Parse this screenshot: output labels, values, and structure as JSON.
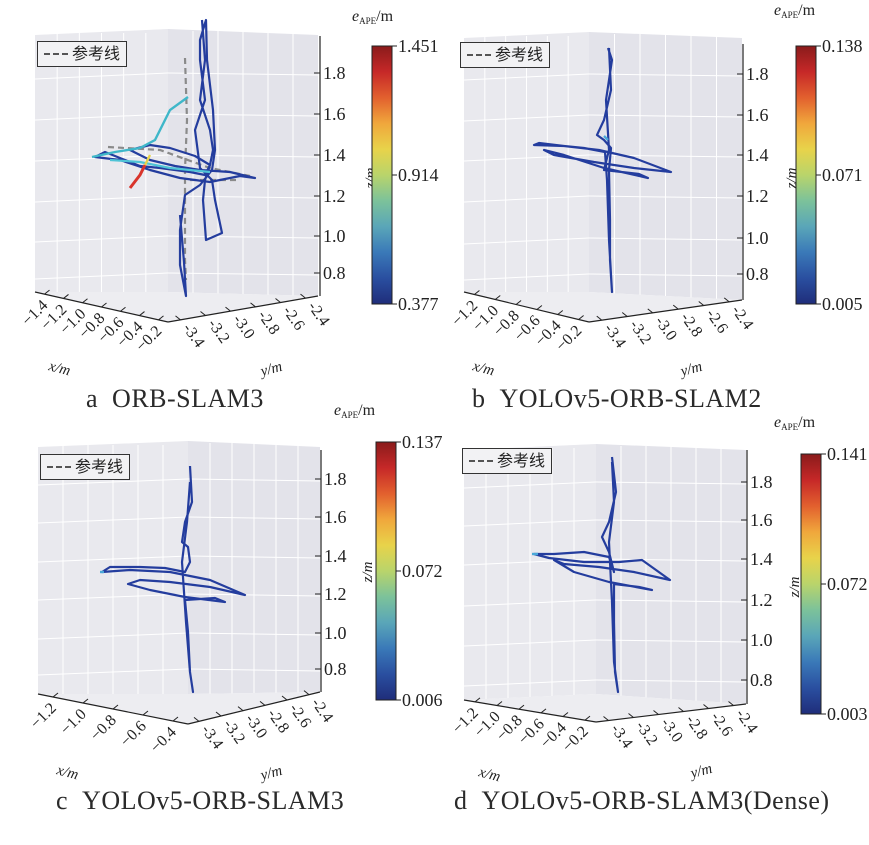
{
  "figure": {
    "legend_label": "参考线",
    "colorbar_title_var": "e",
    "colorbar_title_sub": "APE",
    "colorbar_title_unit": "/m",
    "axis_labels": {
      "x": "x/m",
      "y": "y/m",
      "z": "z/m"
    }
  },
  "chart_data": [
    {
      "type": "scatter",
      "subtype": "3d-trajectory",
      "panel_letter": "a",
      "title": "ORB-SLAM3",
      "xlabel": "x/m",
      "ylabel": "y/m",
      "zlabel": "z/m",
      "x_ticks": [
        "−1.4",
        "−1.2",
        "−1.0",
        "−0.8",
        "−0.6",
        "−0.4",
        "−0.2"
      ],
      "y_ticks": [
        "-3.4",
        "-3.2",
        "-3.0",
        "-2.8",
        "-2.6",
        "-2.4"
      ],
      "z_ticks": [
        "0.8",
        "1.0",
        "1.2",
        "1.4",
        "1.6",
        "1.8"
      ],
      "xlim": [
        -1.5,
        -0.1
      ],
      "ylim": [
        -3.5,
        -2.3
      ],
      "zlim": [
        0.7,
        1.95
      ],
      "colorbar": {
        "min": "0.377",
        "mid": "0.914",
        "max": "1.451",
        "label": "e_APE/m"
      },
      "reference_shown": true,
      "legend": [
        "参考线"
      ]
    },
    {
      "type": "scatter",
      "subtype": "3d-trajectory",
      "panel_letter": "b",
      "title": "YOLOv5-ORB-SLAM2",
      "xlabel": "x/m",
      "ylabel": "y/m",
      "zlabel": "z/m",
      "x_ticks": [
        "−1.2",
        "−1.0",
        "−0.8",
        "−0.6",
        "−0.4",
        "−0.2"
      ],
      "y_ticks": [
        "-3.4",
        "-3.2",
        "-3.0",
        "-2.8",
        "-2.6",
        "-2.4"
      ],
      "z_ticks": [
        "0.8",
        "1.0",
        "1.2",
        "1.4",
        "1.6",
        "1.8"
      ],
      "xlim": [
        -1.3,
        -0.1
      ],
      "ylim": [
        -3.5,
        -2.3
      ],
      "zlim": [
        0.7,
        1.95
      ],
      "colorbar": {
        "min": "0.005",
        "mid": "0.071",
        "max": "0.138",
        "label": "e_APE/m"
      },
      "reference_shown": false,
      "legend": [
        "参考线"
      ]
    },
    {
      "type": "scatter",
      "subtype": "3d-trajectory",
      "panel_letter": "c",
      "title": "YOLOv5-ORB-SLAM3",
      "xlabel": "x/m",
      "ylabel": "y/m",
      "zlabel": "z/m",
      "x_ticks": [
        "−1.2",
        "−1.0",
        "−0.8",
        "−0.6",
        "−0.4"
      ],
      "y_ticks": [
        "-3.4",
        "-3.2",
        "-3.0",
        "-2.8",
        "-2.6",
        "-2.4"
      ],
      "z_ticks": [
        "0.8",
        "1.0",
        "1.2",
        "1.4",
        "1.6",
        "1.8"
      ],
      "xlim": [
        -1.3,
        -0.3
      ],
      "ylim": [
        -3.5,
        -2.3
      ],
      "zlim": [
        0.7,
        1.9
      ],
      "colorbar": {
        "min": "0.006",
        "mid": "0.072",
        "max": "0.137",
        "label": "e_APE/m"
      },
      "reference_shown": false,
      "legend": [
        "参考线"
      ]
    },
    {
      "type": "scatter",
      "subtype": "3d-trajectory",
      "panel_letter": "d",
      "title": "YOLOv5-ORB-SLAM3(Dense)",
      "xlabel": "x/m",
      "ylabel": "y/m",
      "zlabel": "z/m",
      "x_ticks": [
        "−1.2",
        "−1.0",
        "−0.8",
        "−0.6",
        "−0.4",
        "−0.2"
      ],
      "y_ticks": [
        "-3.4",
        "-3.2",
        "-3.0",
        "-2.8",
        "-2.6",
        "-2.4"
      ],
      "z_ticks": [
        "0.8",
        "1.0",
        "1.2",
        "1.4",
        "1.6",
        "1.8"
      ],
      "xlim": [
        -1.3,
        -0.1
      ],
      "ylim": [
        -3.5,
        -2.3
      ],
      "zlim": [
        0.7,
        1.95
      ],
      "colorbar": {
        "min": "0.003",
        "mid": "0.072",
        "max": "0.141",
        "label": "e_APE/m"
      },
      "reference_shown": false,
      "legend": [
        "参考线"
      ]
    }
  ]
}
